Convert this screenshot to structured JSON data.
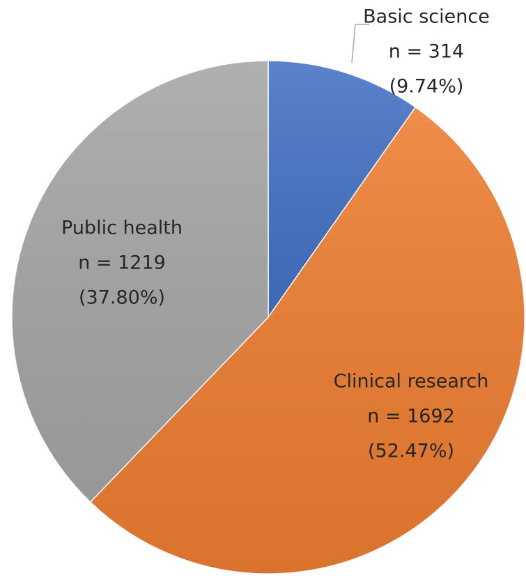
{
  "chart_data": {
    "type": "pie",
    "categories": [
      "Basic science",
      "Clinical research",
      "Public health"
    ],
    "values": [
      314,
      1692,
      1219
    ],
    "value_labels": [
      "n = 314",
      "n = 1692",
      "n = 1219"
    ],
    "percent_labels": [
      "(9.74%)",
      "(52.47%)",
      "(37.80%)"
    ],
    "colors": [
      "#4472c4",
      "#ed7d31",
      "#a5a5a5"
    ]
  }
}
